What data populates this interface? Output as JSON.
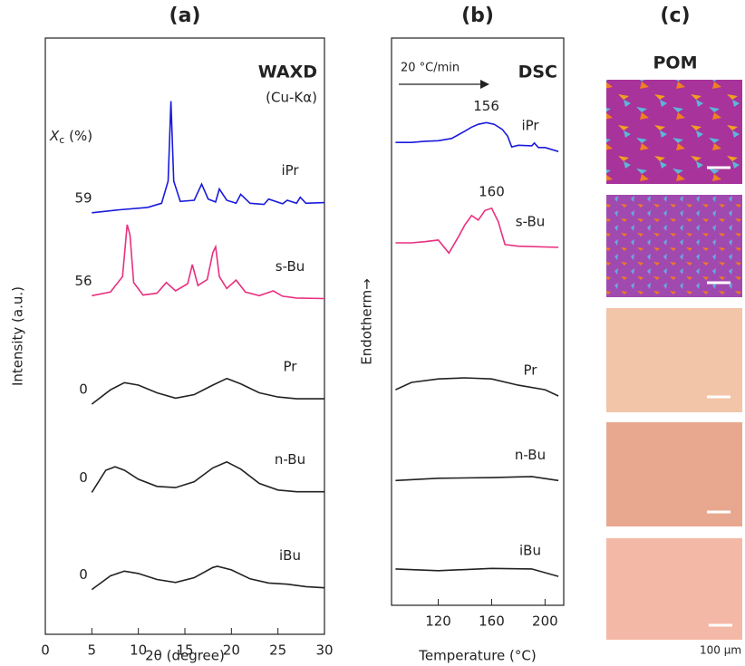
{
  "chart_data": [
    {
      "type": "line",
      "title": "(a)",
      "method": "WAXD",
      "note": "(Cu-Kα)",
      "xlabel": "2θ (degree)",
      "ylabel": "Intensity (a.u.)",
      "annotation_title": {
        "symbol": "X",
        "subscript": "c",
        "unit": " (%)"
      },
      "xlim": [
        0,
        30
      ],
      "ylim": [
        0,
        100
      ],
      "xticks": [
        0,
        5,
        10,
        15,
        20,
        25,
        30
      ],
      "series": [
        {
          "name": "iPr",
          "color": "#1a1adb",
          "annotation": 59,
          "x": [
            5,
            8,
            11,
            12.5,
            13.2,
            13.5,
            13.8,
            14.5,
            16,
            16.8,
            17.5,
            18.3,
            18.7,
            19.5,
            20.5,
            21,
            22,
            23.5,
            24,
            25.5,
            26,
            27,
            27.4,
            28,
            30
          ],
          "values": [
            70.7,
            71.2,
            71.6,
            72.3,
            76,
            89.4,
            76,
            72.6,
            72.8,
            75.5,
            73,
            72.5,
            74.7,
            72.8,
            72.3,
            73.8,
            72.3,
            72.1,
            73,
            72.2,
            72.8,
            72.3,
            73.3,
            72.3,
            72.4
          ]
        },
        {
          "name": "s-Bu",
          "color": "#e8307f",
          "annotation": 56,
          "x": [
            5,
            7,
            8.3,
            8.8,
            9.1,
            9.5,
            10.5,
            12,
            13,
            14,
            15.3,
            15.8,
            16.4,
            17.4,
            18,
            18.3,
            18.7,
            19.5,
            20.5,
            21.5,
            23,
            24.5,
            25.5,
            27,
            30
          ],
          "values": [
            56.8,
            57.4,
            60,
            68.7,
            67,
            59,
            56.9,
            57.2,
            59,
            57.6,
            58.8,
            62,
            58.5,
            59.5,
            64,
            65,
            60,
            58,
            59.4,
            57.4,
            56.8,
            57.6,
            56.7,
            56.4,
            56.3
          ]
        },
        {
          "name": "Pr",
          "color": "#222222",
          "annotation": 0,
          "x": [
            5,
            7,
            8.5,
            10,
            12,
            14,
            16,
            18,
            19.5,
            21,
            23,
            25,
            27,
            30
          ],
          "values": [
            38.6,
            41,
            42.2,
            41.8,
            40.5,
            39.6,
            40.2,
            41.8,
            42.9,
            42,
            40.5,
            39.8,
            39.5,
            39.5
          ]
        },
        {
          "name": "n-Bu",
          "color": "#222222",
          "annotation": 0,
          "x": [
            5,
            6.5,
            7.5,
            8.5,
            10,
            12,
            14,
            16,
            18,
            19.5,
            21,
            23,
            25,
            27,
            30
          ],
          "values": [
            23.8,
            27.5,
            28.1,
            27.5,
            26,
            24.8,
            24.6,
            25.6,
            27.9,
            28.9,
            27.7,
            25.3,
            24.2,
            23.9,
            23.9
          ]
        },
        {
          "name": "iBu",
          "color": "#222222",
          "annotation": 0,
          "x": [
            5,
            7,
            8.5,
            10,
            12,
            14,
            16,
            18,
            18.5,
            20,
            22,
            24,
            26,
            28,
            30
          ],
          "values": [
            7.5,
            9.8,
            10.6,
            10.2,
            9.2,
            8.7,
            9.5,
            11.2,
            11.4,
            10.8,
            9.3,
            8.6,
            8.4,
            8.0,
            7.8
          ]
        }
      ]
    },
    {
      "type": "line",
      "title": "(b)",
      "method": "DSC",
      "note": "20 °C/min",
      "xlabel": "Temperature (°C)",
      "ylabel": "Endotherm→",
      "xlim": [
        85,
        214
      ],
      "ylim": [
        0,
        100
      ],
      "xticks": [
        120,
        160,
        200
      ],
      "series": [
        {
          "name": "iPr",
          "color": "#1a1adb",
          "peak": 156,
          "x": [
            88,
            100,
            110,
            120,
            130,
            140,
            145,
            150,
            156,
            162,
            168,
            172,
            175,
            180,
            190,
            192,
            195,
            200,
            210
          ],
          "values": [
            81.6,
            81.6,
            81.8,
            81.9,
            82.3,
            83.6,
            84.3,
            84.8,
            85.1,
            84.8,
            83.9,
            82.7,
            80.8,
            81.1,
            81.0,
            81.5,
            80.7,
            80.7,
            80.0
          ]
        },
        {
          "name": "s-Bu",
          "color": "#e8307f",
          "peak": 160,
          "x": [
            88,
            100,
            110,
            120,
            128,
            135,
            140,
            145,
            150,
            155,
            160,
            165,
            170,
            180,
            210
          ],
          "values": [
            63.9,
            63.9,
            64.1,
            64.4,
            62.1,
            64.9,
            67.1,
            68.7,
            67.9,
            69.6,
            70.0,
            67.6,
            63.6,
            63.3,
            63.1
          ]
        },
        {
          "name": "Pr",
          "color": "#222222",
          "x": [
            88,
            100,
            120,
            140,
            160,
            180,
            200,
            210
          ],
          "values": [
            38.0,
            39.3,
            39.9,
            40.1,
            39.9,
            38.8,
            38.0,
            36.9
          ]
        },
        {
          "name": "n-Bu",
          "color": "#222222",
          "x": [
            88,
            120,
            160,
            190,
            210
          ],
          "values": [
            22.0,
            22.4,
            22.5,
            22.7,
            22.0
          ]
        },
        {
          "name": "iBu",
          "color": "#222222",
          "x": [
            88,
            120,
            160,
            190,
            210
          ],
          "values": [
            6.4,
            6.1,
            6.5,
            6.4,
            5.1
          ]
        }
      ]
    }
  ],
  "pom": {
    "title": "(c)",
    "heading": "POM",
    "scale_label": "100 μm"
  }
}
